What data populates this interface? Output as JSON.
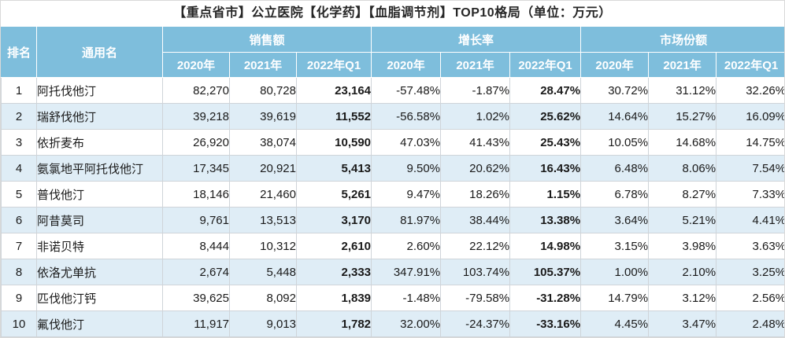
{
  "chart_data": {
    "type": "table",
    "title": "【重点省市】公立医院【化学药】【血脂调节剂】TOP10格局（单位：万元）",
    "rank_header": "排名",
    "name_header": "通用名",
    "column_groups": [
      {
        "label": "销售额",
        "columns": [
          "2020年",
          "2021年",
          "2022年Q1"
        ]
      },
      {
        "label": "增长率",
        "columns": [
          "2020年",
          "2021年",
          "2022年Q1"
        ]
      },
      {
        "label": "市场份额",
        "columns": [
          "2020年",
          "2021年",
          "2022年Q1"
        ]
      }
    ],
    "highlight_columns": [
      "销售额-2022年Q1",
      "增长率-2022年Q1"
    ],
    "rows": [
      {
        "rank": "1",
        "name": "阿托伐他汀",
        "sales": [
          "82,270",
          "80,728",
          "23,164"
        ],
        "growth": [
          "-57.48%",
          "-1.87%",
          "28.47%"
        ],
        "share": [
          "30.72%",
          "31.12%",
          "32.26%"
        ]
      },
      {
        "rank": "2",
        "name": "瑞舒伐他汀",
        "sales": [
          "39,218",
          "39,619",
          "11,552"
        ],
        "growth": [
          "-56.58%",
          "1.02%",
          "25.62%"
        ],
        "share": [
          "14.64%",
          "15.27%",
          "16.09%"
        ]
      },
      {
        "rank": "3",
        "name": "依折麦布",
        "sales": [
          "26,920",
          "38,074",
          "10,590"
        ],
        "growth": [
          "47.03%",
          "41.43%",
          "25.43%"
        ],
        "share": [
          "10.05%",
          "14.68%",
          "14.75%"
        ]
      },
      {
        "rank": "4",
        "name": "氨氯地平阿托伐他汀",
        "sales": [
          "17,345",
          "20,921",
          "5,413"
        ],
        "growth": [
          "9.50%",
          "20.62%",
          "16.43%"
        ],
        "share": [
          "6.48%",
          "8.06%",
          "7.54%"
        ]
      },
      {
        "rank": "5",
        "name": "普伐他汀",
        "sales": [
          "18,146",
          "21,460",
          "5,261"
        ],
        "growth": [
          "9.47%",
          "18.26%",
          "1.15%"
        ],
        "share": [
          "6.78%",
          "8.27%",
          "7.33%"
        ]
      },
      {
        "rank": "6",
        "name": "阿昔莫司",
        "sales": [
          "9,761",
          "13,513",
          "3,170"
        ],
        "growth": [
          "81.97%",
          "38.44%",
          "13.38%"
        ],
        "share": [
          "3.64%",
          "5.21%",
          "4.41%"
        ]
      },
      {
        "rank": "7",
        "name": "非诺贝特",
        "sales": [
          "8,444",
          "10,312",
          "2,610"
        ],
        "growth": [
          "2.60%",
          "22.12%",
          "14.98%"
        ],
        "share": [
          "3.15%",
          "3.98%",
          "3.63%"
        ]
      },
      {
        "rank": "8",
        "name": "依洛尤单抗",
        "sales": [
          "2,674",
          "5,448",
          "2,333"
        ],
        "growth": [
          "347.91%",
          "103.74%",
          "105.37%"
        ],
        "share": [
          "1.00%",
          "2.10%",
          "3.25%"
        ]
      },
      {
        "rank": "9",
        "name": "匹伐他汀钙",
        "sales": [
          "39,625",
          "8,092",
          "1,839"
        ],
        "growth": [
          "-1.48%",
          "-79.58%",
          "-31.28%"
        ],
        "share": [
          "14.79%",
          "3.12%",
          "2.56%"
        ]
      },
      {
        "rank": "10",
        "name": "氟伐他汀",
        "sales": [
          "11,917",
          "9,013",
          "1,782"
        ],
        "growth": [
          "32.00%",
          "-24.37%",
          "-33.16%"
        ],
        "share": [
          "4.45%",
          "3.47%",
          "2.48%"
        ]
      }
    ],
    "colors": {
      "header_bg": "#7EBEDC",
      "band_bg": "#DFEDF6",
      "highlight_text": "#FF0000"
    }
  }
}
